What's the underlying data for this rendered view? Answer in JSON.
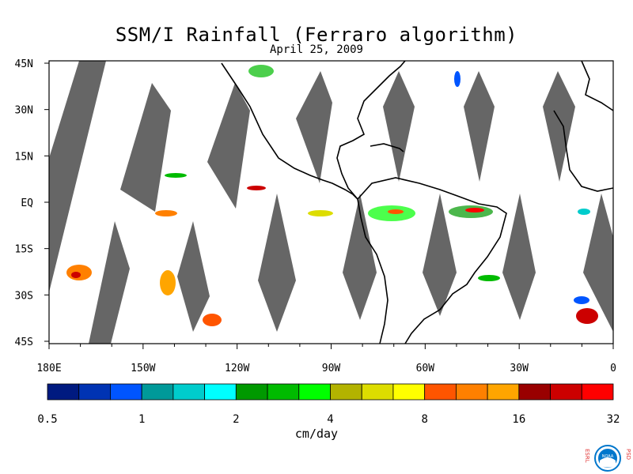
{
  "title": "SSM/I Rainfall (Ferraro algorithm)",
  "date": "April 25, 2009",
  "lat_labels": [
    "45N",
    "30N",
    "15N",
    "EQ",
    "15S",
    "30S",
    "45S"
  ],
  "lon_labels": [
    "180E",
    "150W",
    "120W",
    "90W",
    "60W",
    "30W",
    "0"
  ],
  "colorbar": {
    "colors": [
      "#001a80",
      "#0033b3",
      "#0055ff",
      "#009999",
      "#00cccc",
      "#00ffff",
      "#009900",
      "#00bb00",
      "#00ff00",
      "#b3b300",
      "#dddd00",
      "#ffff00",
      "#ff5500",
      "#ff8000",
      "#ffa500",
      "#990000",
      "#cc0000",
      "#ff0000"
    ],
    "tick_labels": [
      "0.5",
      "1",
      "2",
      "4",
      "8",
      "16",
      "32"
    ],
    "units": "cm/day"
  },
  "logo": {
    "left_letters": "ESRL",
    "right_letters": "PSD",
    "badge": "NOAA",
    "colors": {
      "letters": "#e03030",
      "ring": "#0077cc"
    }
  },
  "map_colors": {
    "land": "#000000",
    "swath_gap": "#666666"
  }
}
